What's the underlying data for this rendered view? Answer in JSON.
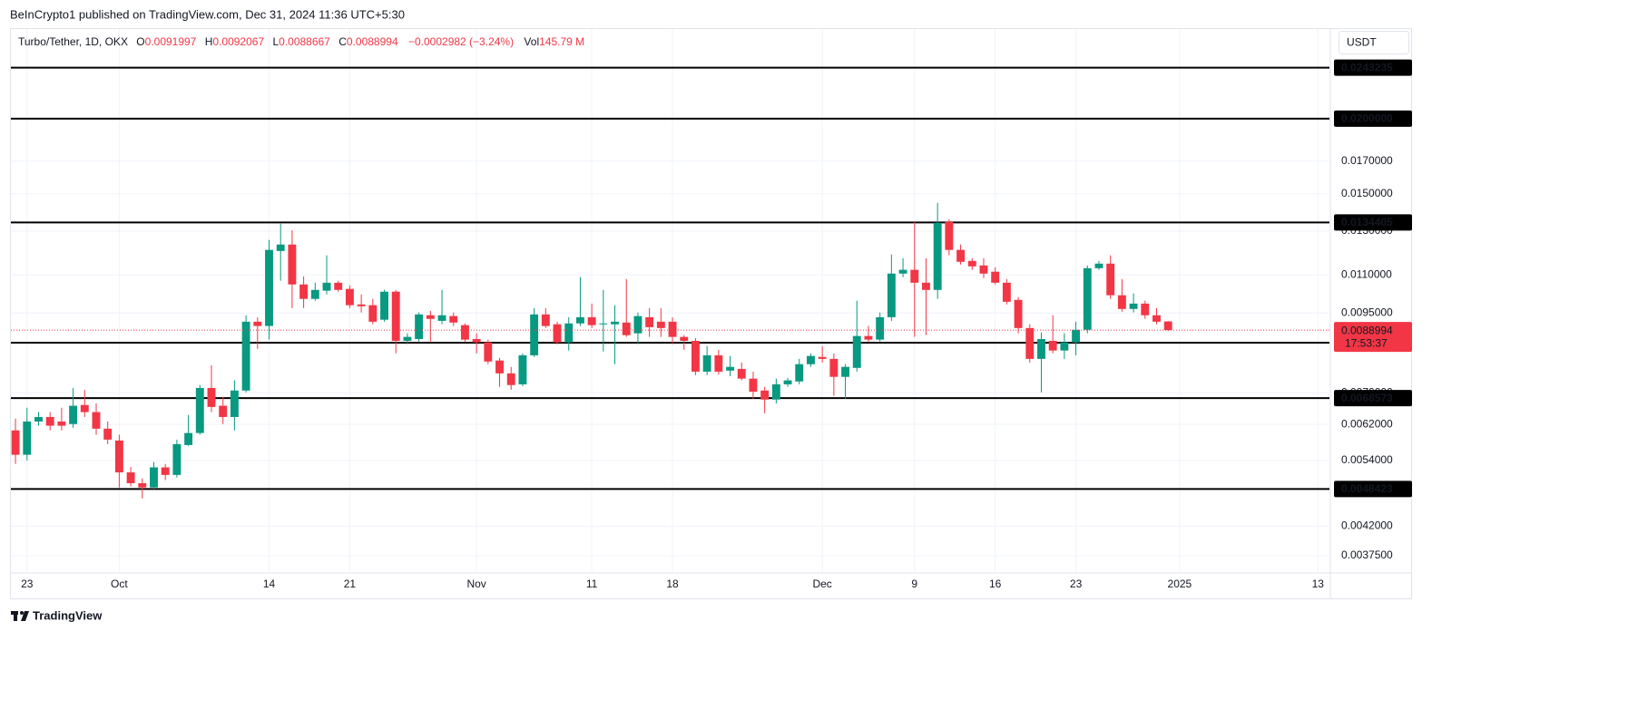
{
  "header": "BeInCrypto1 published on TradingView.com, Dec 31, 2024 11:36 UTC+5:30",
  "footer": "TradingView",
  "chart_data": {
    "type": "candlestick",
    "legend": {
      "symbol": "Turbo/Tether, 1D, OKX",
      "labels": [
        "O",
        "H",
        "L",
        "C"
      ],
      "change": "−0.0002982 (−3.24%)",
      "volume_label": "Vol",
      "volume": "145.79 M"
    },
    "currency": "USDT",
    "countdown": "17:53:37",
    "colors": {
      "up": "#089981",
      "down": "#f23645",
      "level": "#000000",
      "grid": "#f0f3fa"
    },
    "log_scale": true,
    "grid": true,
    "ylim": [
      0.00351,
      0.0282
    ],
    "yticks": [
      {
        "value": 0.00375,
        "label": "0.0037500"
      },
      {
        "value": 0.0042,
        "label": "0.0042000"
      },
      {
        "value": 0.0054,
        "label": "0.0054000"
      },
      {
        "value": 0.0062,
        "label": "0.0062000"
      },
      {
        "value": 0.007,
        "label": "0.0070000"
      },
      {
        "value": 0.0095,
        "label": "0.0095000"
      },
      {
        "value": 0.011,
        "label": "0.0110000"
      },
      {
        "value": 0.013,
        "label": "0.0130000"
      },
      {
        "value": 0.015,
        "label": "0.0150000"
      },
      {
        "value": 0.017,
        "label": "0.0170000"
      }
    ],
    "xlim": [
      -0.4,
      114.0
    ],
    "xticks": [
      {
        "value": 1,
        "label": "23"
      },
      {
        "value": 9,
        "label": "Oct"
      },
      {
        "value": 22,
        "label": "14"
      },
      {
        "value": 29,
        "label": "21"
      },
      {
        "value": 40,
        "label": "Nov"
      },
      {
        "value": 50,
        "label": "11"
      },
      {
        "value": 57,
        "label": "18"
      },
      {
        "value": 70,
        "label": "Dec"
      },
      {
        "value": 78,
        "label": "9"
      },
      {
        "value": 85,
        "label": "16"
      },
      {
        "value": 92,
        "label": "23"
      },
      {
        "value": 101,
        "label": "2025"
      },
      {
        "value": 113,
        "label": "13"
      }
    ],
    "levels": [
      0.0243235,
      {
        "value": 0.02,
        "label": "0.0200000"
      },
      0.0134405,
      0.0084793,
      0.0068573,
      0.0048423
    ],
    "open": [
      0.00606,
      0.00552,
      0.00627,
      0.00638,
      0.00627,
      0.00621,
      0.00668,
      0.0065,
      0.0061,
      0.00583,
      0.00516,
      0.00495,
      0.00487,
      0.00526,
      0.00511,
      0.00573,
      0.006,
      0.00713,
      0.00666,
      0.00638,
      0.00706,
      0.00919,
      0.00904,
      0.01205,
      0.01235,
      0.0106,
      0.01003,
      0.01035,
      0.01067,
      0.01042,
      0.00982,
      0.00979,
      0.00926,
      0.01031,
      0.00854,
      0.0086,
      0.00942,
      0.00922,
      0.00939,
      0.00907,
      0.0086,
      0.00849,
      0.00792,
      0.00754,
      0.00723,
      0.00808,
      0.00945,
      0.0091,
      0.00849,
      0.00913,
      0.00935,
      0.0091,
      0.0091,
      0.00916,
      0.00879,
      0.00935,
      0.00919,
      0.00919,
      0.00867,
      0.00854,
      0.00759,
      0.00808,
      0.00762,
      0.00767,
      0.00739,
      0.00706,
      0.00682,
      0.00723,
      0.00731,
      0.00781,
      0.00803,
      0.00797,
      0.00744,
      0.0077,
      0.0087,
      0.00858,
      0.00935,
      0.01105,
      0.01121,
      0.01067,
      0.01038,
      0.01347,
      0.0121,
      0.0116,
      0.0114,
      0.01113,
      0.01067,
      0.00999,
      0.00897,
      0.00797,
      0.00854,
      0.00823,
      0.00849,
      0.00891,
      0.01128,
      0.01148,
      0.01017,
      0.00965,
      0.00985,
      0.00942,
      0.0091997
    ],
    "high": [
      0.00634,
      0.00661,
      0.0065,
      0.0065,
      0.00661,
      0.00713,
      0.00708,
      0.00672,
      0.00627,
      0.00596,
      0.00527,
      0.00504,
      0.00537,
      0.00533,
      0.00585,
      0.00643,
      0.00721,
      0.00778,
      0.00689,
      0.00734,
      0.00942,
      0.00935,
      0.01257,
      0.01338,
      0.01305,
      0.01093,
      0.01067,
      0.01185,
      0.01075,
      0.01056,
      0.0102,
      0.01003,
      0.01038,
      0.01038,
      0.00879,
      0.00952,
      0.00958,
      0.01038,
      0.00952,
      0.00913,
      0.00879,
      0.00858,
      0.008,
      0.00773,
      0.00814,
      0.00968,
      0.00968,
      0.00919,
      0.00935,
      0.0109,
      0.00985,
      0.01038,
      0.00979,
      0.01082,
      0.00952,
      0.00968,
      0.00968,
      0.00935,
      0.00873,
      0.00863,
      0.00837,
      0.00825,
      0.00806,
      0.00786,
      0.00759,
      0.00716,
      0.00739,
      0.00741,
      0.00797,
      0.00814,
      0.00837,
      0.00814,
      0.00781,
      0.00996,
      0.00904,
      0.00952,
      0.01189,
      0.01172,
      0.01347,
      0.01172,
      0.01449,
      0.01361,
      0.01235,
      0.01172,
      0.01172,
      0.01132,
      0.01082,
      0.0101,
      0.0091,
      0.00882,
      0.00942,
      0.00879,
      0.00919,
      0.0114,
      0.0116,
      0.01185,
      0.01082,
      0.01024,
      0.00996,
      0.00968,
      0.0092067
    ],
    "low": [
      0.00533,
      0.0054,
      0.00617,
      0.00606,
      0.00606,
      0.00612,
      0.00638,
      0.00596,
      0.00575,
      0.00487,
      0.00489,
      0.00467,
      0.00484,
      0.00501,
      0.00506,
      0.00571,
      0.00596,
      0.0065,
      0.00621,
      0.00606,
      0.00701,
      0.00828,
      0.00858,
      0.01075,
      0.00968,
      0.00968,
      0.00996,
      0.0102,
      0.01031,
      0.00968,
      0.00952,
      0.0091,
      0.00919,
      0.00814,
      0.00843,
      0.00852,
      0.00849,
      0.0091,
      0.00904,
      0.00849,
      0.00814,
      0.00781,
      0.00716,
      0.00708,
      0.00718,
      0.00803,
      0.00897,
      0.00843,
      0.00823,
      0.00904,
      0.00897,
      0.0082,
      0.00781,
      0.00867,
      0.00843,
      0.00867,
      0.00867,
      0.00843,
      0.00825,
      0.00749,
      0.00749,
      0.00751,
      0.00746,
      0.00734,
      0.00684,
      0.00647,
      0.00672,
      0.00716,
      0.00723,
      0.00773,
      0.00786,
      0.00692,
      0.00684,
      0.00759,
      0.00849,
      0.00852,
      0.00922,
      0.0109,
      0.00867,
      0.00873,
      0.01003,
      0.01185,
      0.01144,
      0.01121,
      0.01086,
      0.0106,
      0.00982,
      0.00879,
      0.00786,
      0.00701,
      0.00814,
      0.00797,
      0.00808,
      0.00879,
      0.01121,
      0.01003,
      0.00955,
      0.00952,
      0.00929,
      0.0091,
      0.0088667
    ],
    "close": [
      0.00552,
      0.00627,
      0.00638,
      0.00617,
      0.00617,
      0.00666,
      0.0065,
      0.0061,
      0.00585,
      0.00516,
      0.00495,
      0.00487,
      0.00526,
      0.00511,
      0.00575,
      0.006,
      0.00713,
      0.00663,
      0.00638,
      0.00706,
      0.00919,
      0.00904,
      0.0121,
      0.01235,
      0.0106,
      0.01003,
      0.01038,
      0.01067,
      0.01038,
      0.00979,
      0.00975,
      0.00919,
      0.01031,
      0.00854,
      0.00867,
      0.00945,
      0.00929,
      0.00942,
      0.00916,
      0.00858,
      0.00849,
      0.00789,
      0.00754,
      0.00721,
      0.00808,
      0.00945,
      0.00904,
      0.00849,
      0.00913,
      0.00935,
      0.00907,
      0.00913,
      0.00919,
      0.00873,
      0.00939,
      0.009,
      0.00897,
      0.00867,
      0.00854,
      0.00759,
      0.00808,
      0.00759,
      0.00773,
      0.00739,
      0.00703,
      0.00682,
      0.00723,
      0.00734,
      0.00781,
      0.00806,
      0.00797,
      0.00744,
      0.00773,
      0.0087,
      0.00858,
      0.00935,
      0.01105,
      0.01121,
      0.01067,
      0.01038,
      0.01342,
      0.0121,
      0.01156,
      0.01136,
      0.01105,
      0.01067,
      0.00992,
      0.00897,
      0.00797,
      0.0086,
      0.00823,
      0.00849,
      0.00891,
      0.01128,
      0.01148,
      0.01017,
      0.00965,
      0.00985,
      0.00942,
      0.00919,
      0.0088994
    ]
  }
}
